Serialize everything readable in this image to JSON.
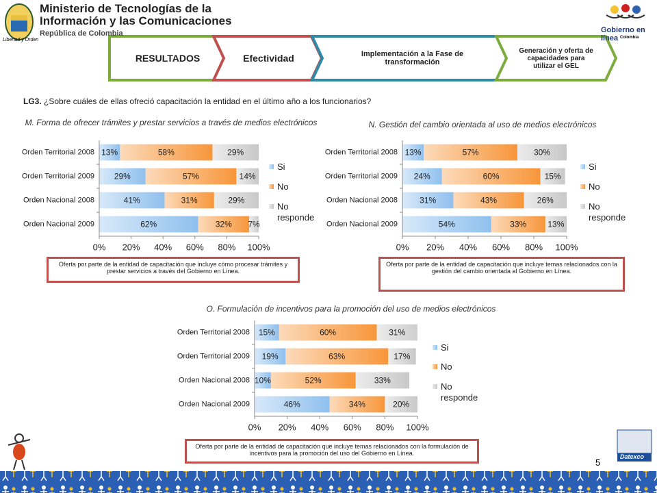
{
  "header": {
    "ministry_line1": "Ministerio de Tecnologías de la",
    "ministry_line2": "Información y las Comunicaciones",
    "ministry_line3": "República de Colombia",
    "motto": "Libertad y Orden",
    "gel_logo": "Gobierno en línea",
    "gel_country": "Colombia"
  },
  "nav": [
    "RESULTADOS",
    "Efectividad",
    "Implementación  a la Fase de transformación",
    "Generación y oferta de capacidades para utilizar el GEL"
  ],
  "question": {
    "code": "LG3.",
    "text": "¿Sobre cuáles de ellas ofreció capacitación la entidad en el último año a los  funcionarios?"
  },
  "footer": {
    "page": "5",
    "brand": "Datexco"
  },
  "chart_data": [
    {
      "type": "stacked_bar_h",
      "title": "M. Forma de  ofrecer trámites y prestar servicios a través de medios electrónicos",
      "annotation": "Oferta por parte de la entidad de capacitación que incluye cómo procesar trámites y prestar servicios a través del Gobierno en Línea.",
      "categories": [
        "Orden Territorial 2008",
        "Orden Territorial 2009",
        "Orden Nacional 2008",
        "Orden Nacional 2009"
      ],
      "series": [
        {
          "name": "Si",
          "color": "#8fc0ee",
          "values": [
            13,
            29,
            41,
            62
          ],
          "value_labels": [
            "13%",
            "29%",
            "41%",
            "62%"
          ]
        },
        {
          "name": "No",
          "color": "#f7963a",
          "values": [
            58,
            57,
            31,
            32
          ],
          "value_labels": [
            "58%",
            "57%",
            "31%",
            "32%"
          ]
        },
        {
          "name": "No responde",
          "color": "#c8c8c8",
          "values": [
            29,
            14,
            29,
            7
          ],
          "value_labels": [
            "29%",
            "14%",
            "29%",
            "7%"
          ]
        }
      ],
      "xlim": [
        0,
        100
      ],
      "xticks": [
        {
          "value": 0,
          "label": "0%"
        },
        {
          "value": 20,
          "label": "20%"
        },
        {
          "value": 40,
          "label": "40%"
        },
        {
          "value": 60,
          "label": "60%"
        },
        {
          "value": 80,
          "label": "80%"
        },
        {
          "value": 100,
          "label": "100%"
        }
      ],
      "legend": "right"
    },
    {
      "type": "stacked_bar_h",
      "title": "N. Gestión del cambio orientada al uso de medios electrónicos",
      "annotation": "Oferta por parte de la entidad de capacitación que incluye temas relacionados con la gestión del cambio orientada al Gobierno en Línea.",
      "categories": [
        "Orden Territorial 2008",
        "Orden Territorial 2009",
        "Orden Nacional 2008",
        "Orden Nacional 2009"
      ],
      "series": [
        {
          "name": "Si",
          "color": "#8fc0ee",
          "values": [
            13,
            24,
            31,
            54
          ],
          "value_labels": [
            "13%",
            "24%",
            "31%",
            "54%"
          ]
        },
        {
          "name": "No",
          "color": "#f7963a",
          "values": [
            57,
            60,
            43,
            33
          ],
          "value_labels": [
            "57%",
            "60%",
            "43%",
            "33%"
          ]
        },
        {
          "name": "No responde",
          "color": "#c8c8c8",
          "values": [
            30,
            15,
            26,
            13
          ],
          "value_labels": [
            "30%",
            "15%",
            "26%",
            "13%"
          ]
        }
      ],
      "xlim": [
        0,
        100
      ],
      "xticks": [
        {
          "value": 0,
          "label": "0%"
        },
        {
          "value": 20,
          "label": "20%"
        },
        {
          "value": 40,
          "label": "40%"
        },
        {
          "value": 60,
          "label": "60%"
        },
        {
          "value": 80,
          "label": "80%"
        },
        {
          "value": 100,
          "label": "100%"
        }
      ],
      "legend": "right"
    },
    {
      "type": "stacked_bar_h",
      "title": "O. Formulación de incentivos para la promoción del uso de medios electrónicos",
      "annotation": "Oferta por parte de la entidad de capacitación que incluye temas relacionados con la formulación de incentivos para la promoción del uso del Gobierno en Línea.",
      "categories": [
        "Orden Territorial 2008",
        "Orden Territorial 2009",
        "Orden Nacional 2008",
        "Orden Nacional 2009"
      ],
      "series": [
        {
          "name": "Si",
          "color": "#8fc0ee",
          "values": [
            15,
            19,
            10,
            46
          ],
          "value_labels": [
            "15%",
            "19%",
            "10%",
            "46%"
          ]
        },
        {
          "name": "No",
          "color": "#f7963a",
          "values": [
            60,
            63,
            52,
            34
          ],
          "value_labels": [
            "60%",
            "63%",
            "52%",
            "34%"
          ]
        },
        {
          "name": "No responde",
          "color": "#c8c8c8",
          "values": [
            31,
            17,
            33,
            20
          ],
          "value_labels": [
            "31%",
            "17%",
            "33%",
            "20%"
          ]
        }
      ],
      "xlim": [
        0,
        100
      ],
      "xticks": [
        {
          "value": 0,
          "label": "0%"
        },
        {
          "value": 20,
          "label": "20%"
        },
        {
          "value": 40,
          "label": "40%"
        },
        {
          "value": 60,
          "label": "60%"
        },
        {
          "value": 80,
          "label": "80%"
        },
        {
          "value": 100,
          "label": "100%"
        }
      ],
      "legend": "right"
    }
  ]
}
